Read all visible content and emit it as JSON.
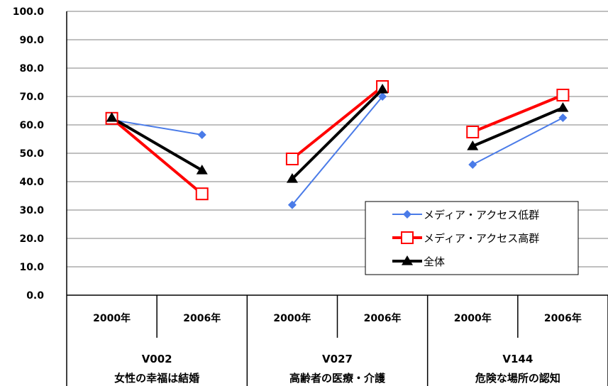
{
  "chart_data": {
    "type": "line",
    "y_ticks": [
      "100.0",
      "90.0",
      "80.0",
      "70.0",
      "60.0",
      "50.0",
      "40.0",
      "30.0",
      "20.0",
      "10.0",
      "0.0"
    ],
    "ylim": [
      0,
      100
    ],
    "grid": true,
    "legend_position": "right",
    "groups": [
      {
        "code": "V002",
        "label": "女性の幸福は結婚",
        "years": [
          "2000年",
          "2006年"
        ]
      },
      {
        "code": "V027",
        "label": "高齢者の医療・介護",
        "years": [
          "2000年",
          "2006年"
        ]
      },
      {
        "code": "V144",
        "label": "危険な場所の認知",
        "years": [
          "2000年",
          "2006年"
        ]
      }
    ],
    "series": [
      {
        "name": "メディア・アクセス低群",
        "color": "#4a7be8",
        "marker": "diamond",
        "values": [
          [
            61.8,
            56.5
          ],
          [
            31.8,
            70.0
          ],
          [
            46.0,
            62.5
          ]
        ]
      },
      {
        "name": "メディア・アクセス高群",
        "color": "#ff0000",
        "marker": "square-open",
        "values": [
          [
            62.3,
            35.7
          ],
          [
            48.0,
            73.5
          ],
          [
            57.5,
            70.5
          ]
        ]
      },
      {
        "name": "全体",
        "color": "#000000",
        "marker": "triangle",
        "values": [
          [
            62.5,
            44.0
          ],
          [
            41.0,
            72.5
          ],
          [
            52.5,
            66.0
          ]
        ]
      }
    ]
  }
}
